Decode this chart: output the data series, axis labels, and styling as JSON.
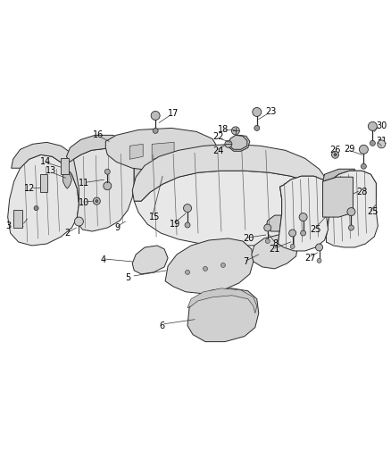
{
  "background_color": "#ffffff",
  "figsize": [
    4.38,
    5.33
  ],
  "dpi": 100,
  "line_color": "#2a2a2a",
  "number_color": "#000000",
  "font_size": 7.0,
  "face_light": "#f0f0f0",
  "face_mid": "#d8d8d8",
  "face_dark": "#b8b8b8"
}
